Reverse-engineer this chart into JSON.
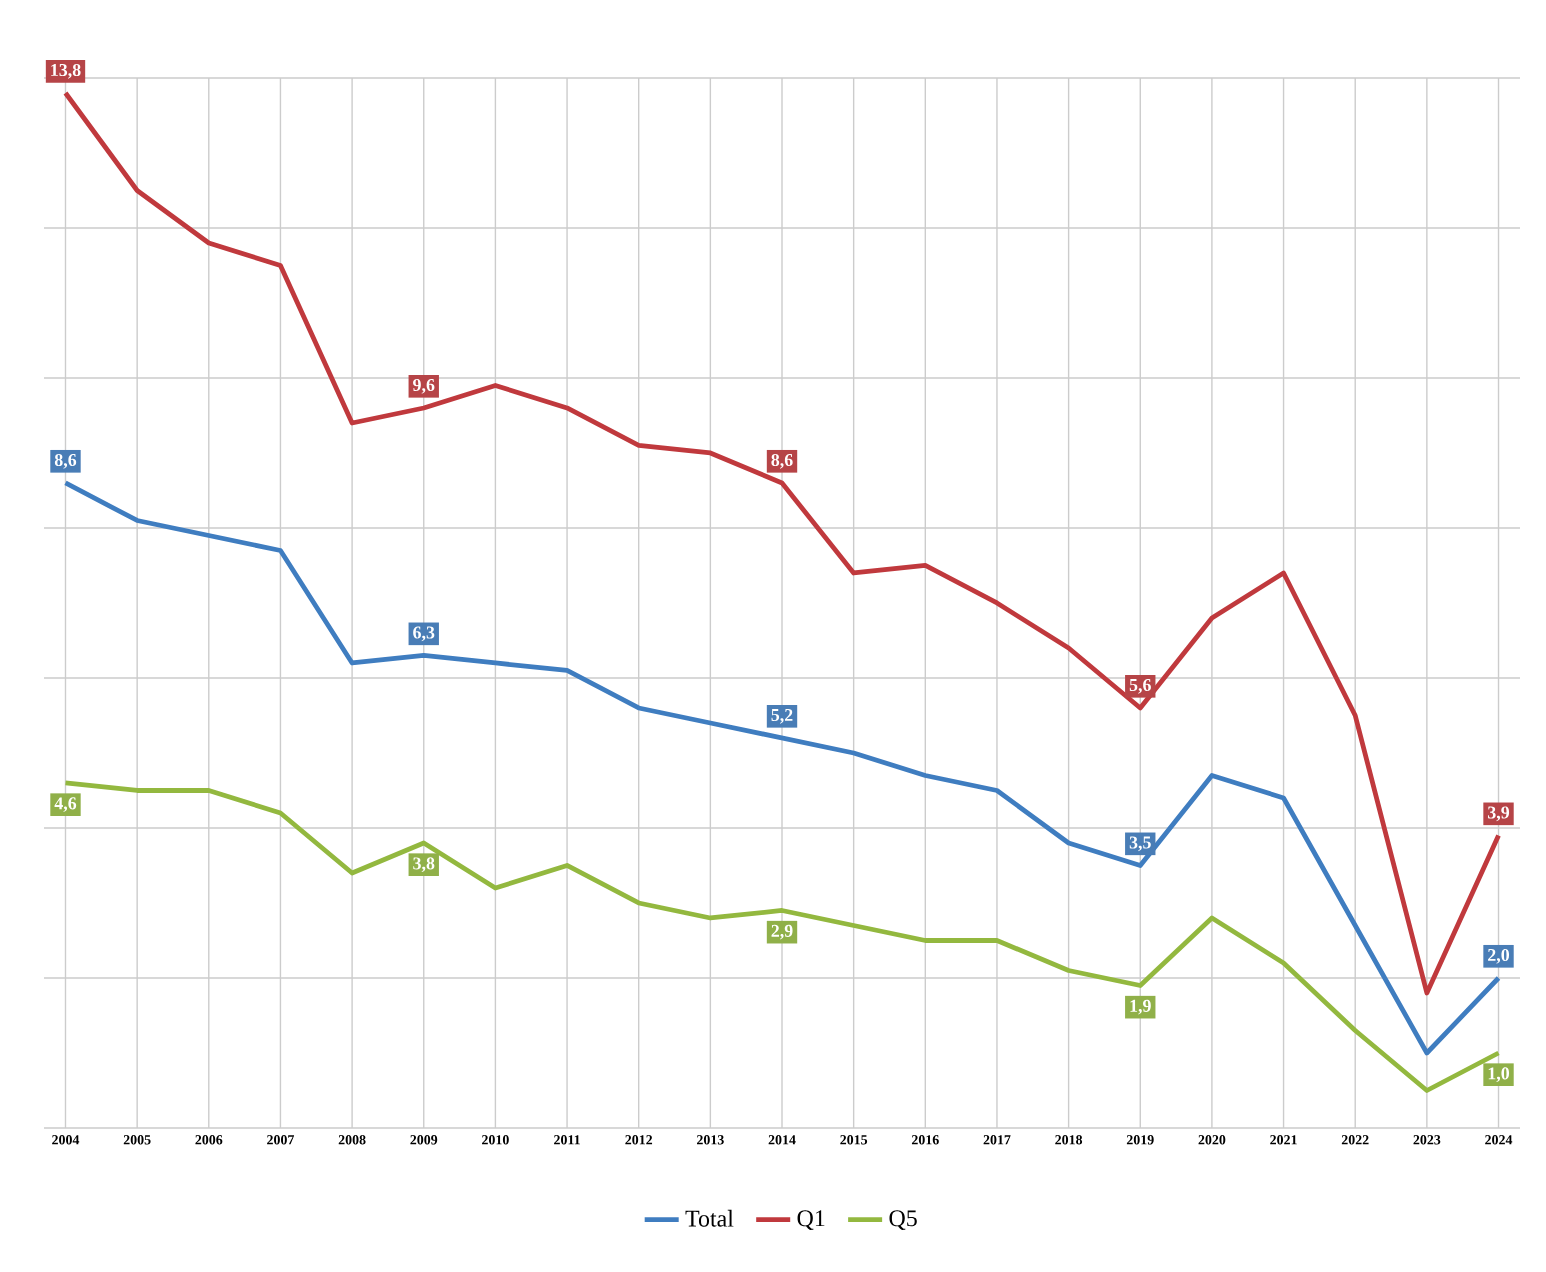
{
  "chart_data": {
    "type": "line",
    "categories": [
      "2004",
      "2005",
      "2006",
      "2007",
      "2008",
      "2009",
      "2010",
      "2011",
      "2012",
      "2013",
      "2014",
      "2015",
      "2016",
      "2017",
      "2018",
      "2019",
      "2020",
      "2021",
      "2022",
      "2023",
      "2024"
    ],
    "series": [
      {
        "name": "Total",
        "color": "#3f7dc0",
        "values": [
          8.6,
          8.1,
          7.9,
          7.7,
          6.2,
          6.3,
          6.2,
          6.1,
          5.6,
          5.4,
          5.2,
          5.0,
          4.7,
          4.5,
          3.8,
          3.5,
          4.7,
          4.4,
          2.7,
          1.0,
          2.0
        ],
        "value_labels": [
          "8,6",
          null,
          null,
          null,
          null,
          "6,3",
          null,
          null,
          null,
          null,
          "5,2",
          null,
          null,
          null,
          null,
          "3,5",
          null,
          null,
          null,
          null,
          "2,0"
        ]
      },
      {
        "name": "Q1",
        "color": "#c0393d",
        "values": [
          13.8,
          12.5,
          11.8,
          11.5,
          9.4,
          9.6,
          9.9,
          9.6,
          9.1,
          9.0,
          8.6,
          7.4,
          7.5,
          7.0,
          6.4,
          5.6,
          6.8,
          7.4,
          5.5,
          1.8,
          3.9
        ],
        "value_labels": [
          "13,8",
          null,
          null,
          null,
          null,
          "9,6",
          null,
          null,
          null,
          null,
          "8,6",
          null,
          null,
          null,
          null,
          "5,6",
          null,
          null,
          null,
          null,
          "3,9"
        ]
      },
      {
        "name": "Q5",
        "color": "#93b83f",
        "values": [
          4.6,
          4.5,
          4.5,
          4.2,
          3.4,
          3.8,
          3.2,
          3.5,
          3.0,
          2.8,
          2.9,
          2.7,
          2.5,
          2.5,
          2.1,
          1.9,
          2.8,
          2.2,
          1.3,
          0.5,
          1.0
        ],
        "value_labels": [
          "4,6",
          null,
          null,
          null,
          null,
          "3,8",
          null,
          null,
          null,
          null,
          "2,9",
          null,
          null,
          null,
          null,
          "1,9",
          null,
          null,
          null,
          null,
          "1,0"
        ]
      }
    ],
    "ylim": [
      0,
      14
    ],
    "yticks": [
      {
        "value": 0,
        "label": null
      },
      {
        "value": 2,
        "label": null
      },
      {
        "value": 4,
        "label": null
      },
      {
        "value": 6,
        "label": null
      },
      {
        "value": 8,
        "label": null
      },
      {
        "value": 10,
        "label": null
      },
      {
        "value": 12,
        "label": null
      },
      {
        "value": 14,
        "label": null
      }
    ],
    "tick_labels": "x",
    "grid": true,
    "legend": "bottom",
    "marker": "none",
    "line_style": "solid"
  }
}
